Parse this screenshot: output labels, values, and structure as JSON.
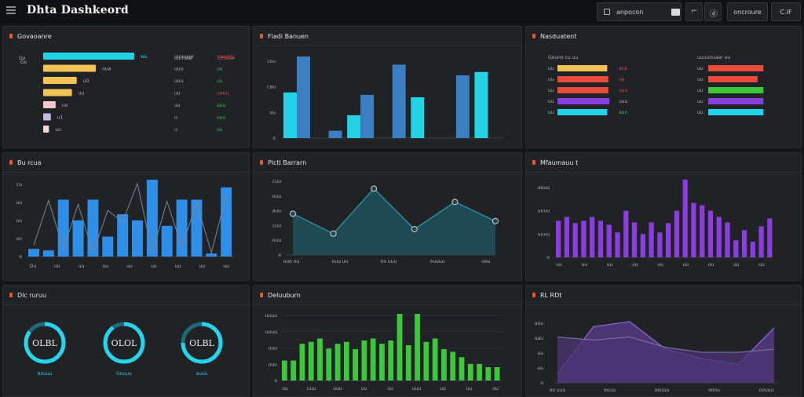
{
  "app": {
    "title": "Dhta Dashkeord"
  },
  "toolbar": {
    "search_label": "anpocon",
    "sm1_glyph": "⌐",
    "sm2_glyph": "ⓓ",
    "btn1_label": "oncroure",
    "btn2_label": "C.IF"
  },
  "colors": {
    "cyan": "#22d3e6",
    "blue": "#3b7fc2",
    "sky": "#2f8fe8",
    "purple": "#8a3ee0",
    "green": "#3cc83a",
    "yellow": "#f2c357",
    "red": "#e84a3c"
  },
  "panel1": {
    "title": "Govaoanre",
    "header_left": "Go",
    "header_mid": "uurnaar",
    "header_right": "ucouae",
    "rows": [
      {
        "label": "Go",
        "value": 0.95,
        "color": "#22d3e6",
        "val": "wu",
        "c2": "uuuuaar",
        "c3": "+auoru",
        "c3_color": "red"
      },
      {
        "label": "",
        "value": 0.55,
        "color": "#f2c357",
        "val": "uua",
        "c2": "uuu",
        "c3": "uu",
        "c3_color": "green"
      },
      {
        "label": "",
        "value": 0.35,
        "color": "#f2c357",
        "val": "u0",
        "c2": "uuu",
        "c3": "uu",
        "c3_color": "green"
      },
      {
        "label": "",
        "value": 0.3,
        "color": "#f2c357",
        "val": "uu",
        "c2": "uu",
        "c3": "uuuu",
        "c3_color": "red"
      },
      {
        "label": "",
        "value": 0.13,
        "color": "#f5c9c9",
        "val": "uo",
        "c2": "uu",
        "c3": "uuu",
        "c3_color": "green"
      },
      {
        "label": "",
        "value": 0.08,
        "color": "#c7b9e8",
        "val": "u1",
        "c2": "u",
        "c3": "uuu",
        "c3_color": "green"
      },
      {
        "label": "",
        "value": 0.06,
        "color": "#f5d6d6",
        "val": "uu",
        "c2": "u",
        "c3": "uu",
        "c3_color": "green"
      }
    ]
  },
  "panel2": {
    "title": "Fladi Banuen",
    "y_ticks": [
      "cou",
      "cau",
      "ou",
      "o"
    ],
    "chart_data": {
      "type": "bar",
      "ylim": [
        0,
        100
      ],
      "series": [
        {
          "color": "#22d3e6",
          "values": [
            56,
            0,
            28,
            0,
            50,
            0,
            81
          ]
        },
        {
          "color": "#3b7fc2",
          "values": [
            100,
            9,
            53,
            90,
            0,
            77,
            0
          ]
        }
      ]
    }
  },
  "panel3": {
    "title": "Nasduatent",
    "left_header": "Geuno cu uu",
    "right_header": "uuuunuaar uu",
    "left_rows": [
      {
        "label": "uu",
        "note": "aca",
        "value": 0.88,
        "color": "#f2c357"
      },
      {
        "label": "uu",
        "note": "uu",
        "value": 0.9,
        "color": "#e84a3c"
      },
      {
        "label": "uu",
        "note": "uuu",
        "value": 0.9,
        "color": "#e84a3c"
      },
      {
        "label": "uu",
        "note": "uuu",
        "value": 0.92,
        "color": "#8a3ee0"
      },
      {
        "label": "uu",
        "note": "aun",
        "value": 0.88,
        "color": "#22d3e6"
      }
    ],
    "right_rows": [
      {
        "label": "uu",
        "value": 0.95,
        "color": "#e84a3c"
      },
      {
        "label": "uu",
        "value": 0.85,
        "color": "#e84a3c"
      },
      {
        "label": "uu",
        "value": 0.95,
        "color": "#3cc83a"
      },
      {
        "label": "uu",
        "value": 0.95,
        "color": "#8a3ee0"
      },
      {
        "label": "uu",
        "value": 0.95,
        "color": "#22d3e6"
      }
    ]
  },
  "panel4": {
    "title": "Bu rcua",
    "y_ticks": [
      "cu",
      "uu",
      "uu",
      "uu",
      "o"
    ],
    "x_ticks": [
      "Du",
      "uu",
      "uu",
      "uu",
      "uu",
      "uu",
      "uu",
      "uu",
      "uu"
    ],
    "chart_data": {
      "type": "bar",
      "ylim": [
        0,
        100
      ],
      "values": [
        10,
        8,
        74,
        47,
        74,
        26,
        55,
        47,
        100,
        40,
        74,
        74,
        4,
        90
      ],
      "overlay_line": [
        15,
        73,
        10,
        68,
        5,
        60,
        45,
        95,
        5,
        72,
        12,
        70,
        5,
        80
      ]
    }
  },
  "panel5": {
    "title": "Plctl Barrarn",
    "y_ticks": [
      "cuu",
      "ouu",
      "auu",
      "cuu",
      "ouu",
      "o"
    ],
    "x_ticks": [
      "ooo ou",
      "ouu uu",
      "oo uuu",
      "ouuuu",
      "oou"
    ],
    "chart_data": {
      "type": "area",
      "ylim": [
        0,
        100
      ],
      "x": [
        0,
        1,
        2,
        3,
        4,
        5
      ],
      "values": [
        56,
        29,
        90,
        35,
        72,
        46
      ]
    }
  },
  "panel6": {
    "title": "Mfaumauu t",
    "y_ticks": [
      "aouu",
      "uuuu",
      "uuuu",
      "o"
    ],
    "x_ticks": [
      "uu",
      "uu",
      "uu",
      "uu",
      "uu",
      "uu",
      "uu",
      "uu",
      "uu"
    ],
    "chart_data": {
      "type": "bar",
      "ylim": [
        0,
        100
      ],
      "values": [
        47,
        52,
        44,
        47,
        52,
        47,
        42,
        32,
        60,
        45,
        30,
        45,
        32,
        44,
        60,
        100,
        70,
        67,
        60,
        52,
        45,
        22,
        35,
        20,
        40,
        50
      ]
    }
  },
  "panel7": {
    "title": "Dlc ruruu",
    "donuts": [
      {
        "label": "OLBL",
        "sub": "bouuu",
        "fill": 0.85
      },
      {
        "label": "OLOL",
        "sub": "Gouuu",
        "fill": 0.9
      },
      {
        "label": "OLBL",
        "sub": "auuu",
        "fill": 0.75
      }
    ]
  },
  "panel8": {
    "title": "Deluuburn",
    "y_ticks": [
      "uuuu",
      "uuuu",
      "uuu",
      "uuu",
      "o"
    ],
    "x_ticks": [
      "uu",
      "uuu",
      "uuu",
      "uu",
      "uu",
      "uuu",
      "uu",
      "uu",
      "uu"
    ],
    "chart_data": {
      "type": "bar",
      "ylim": [
        0,
        100
      ],
      "values": [
        30,
        30,
        55,
        58,
        63,
        48,
        55,
        58,
        47,
        60,
        63,
        55,
        60,
        100,
        53,
        100,
        58,
        63,
        47,
        43,
        35,
        25,
        25,
        20,
        20
      ]
    }
  },
  "panel9": {
    "title": "RL RDt",
    "y_ticks": [
      "uou",
      "uau",
      "uu",
      "uu",
      "o"
    ],
    "x_ticks": [
      "oo uuu",
      "ouuu",
      "oouuu",
      "ooou",
      "oouuu"
    ],
    "chart_data": {
      "type": "area",
      "ylim": [
        0,
        100
      ],
      "x": [
        0,
        1,
        2,
        3,
        4,
        5,
        6
      ],
      "series": [
        {
          "values": [
            15,
            92,
            100,
            55,
            40,
            30,
            90
          ]
        },
        {
          "values": [
            75,
            70,
            75,
            58,
            50,
            50,
            55
          ]
        }
      ]
    }
  }
}
